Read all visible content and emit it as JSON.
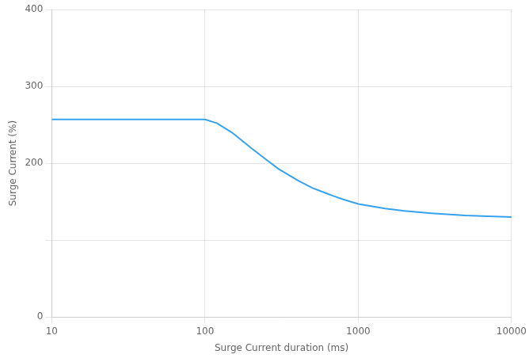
{
  "chart_data": {
    "type": "line",
    "xlabel": "Surge Current duration (ms)",
    "ylabel": "Surge Current (%)",
    "log": "x",
    "x": [
      10,
      20,
      30,
      40,
      50,
      60,
      70,
      80,
      90,
      100,
      120,
      150,
      200,
      250,
      300,
      400,
      500,
      600,
      700,
      800,
      1000,
      1500,
      2000,
      3000,
      5000,
      7000,
      10000
    ],
    "values": [
      257,
      257,
      257,
      257,
      257,
      257,
      257,
      257,
      257,
      257,
      252,
      240,
      220,
      205,
      193,
      178,
      168,
      162,
      157,
      153,
      147,
      141,
      138,
      135,
      132,
      131,
      130
    ],
    "xlim": [
      10,
      10000
    ],
    "xticks": [
      10,
      100,
      1000,
      10000
    ],
    "ylim": [
      0,
      400
    ],
    "yticks": [
      0,
      {
        "value": 100,
        "label": ""
      },
      200,
      300,
      400
    ],
    "grid": true
  }
}
